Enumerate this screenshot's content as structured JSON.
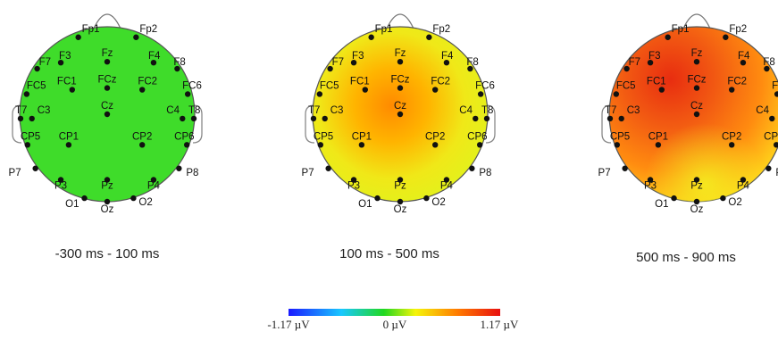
{
  "maps": [
    {
      "time_window": "-300 ms - 100 ms",
      "pattern": "neutral"
    },
    {
      "time_window": "100 ms - 500 ms",
      "pattern": "mid"
    },
    {
      "time_window": "500 ms - 900 ms",
      "pattern": "late"
    }
  ],
  "electrodes": [
    "Fp1",
    "Fp2",
    "F7",
    "F3",
    "Fz",
    "F4",
    "F8",
    "FC5",
    "FC1",
    "FCz",
    "FC2",
    "FC6",
    "T7",
    "C3",
    "Cz",
    "C4",
    "T8",
    "CP5",
    "CP1",
    "CP2",
    "CP6",
    "P7",
    "P3",
    "Pz",
    "P4",
    "P8",
    "O1",
    "Oz",
    "O2"
  ],
  "colorbar": {
    "min_label": "-1.17 µV",
    "mid_label": "0 µV",
    "max_label": "1.17 µV",
    "colors": [
      "#1a1aff",
      "#19c8ff",
      "#20d820",
      "#f5f50a",
      "#ff7a00",
      "#e81010"
    ]
  }
}
